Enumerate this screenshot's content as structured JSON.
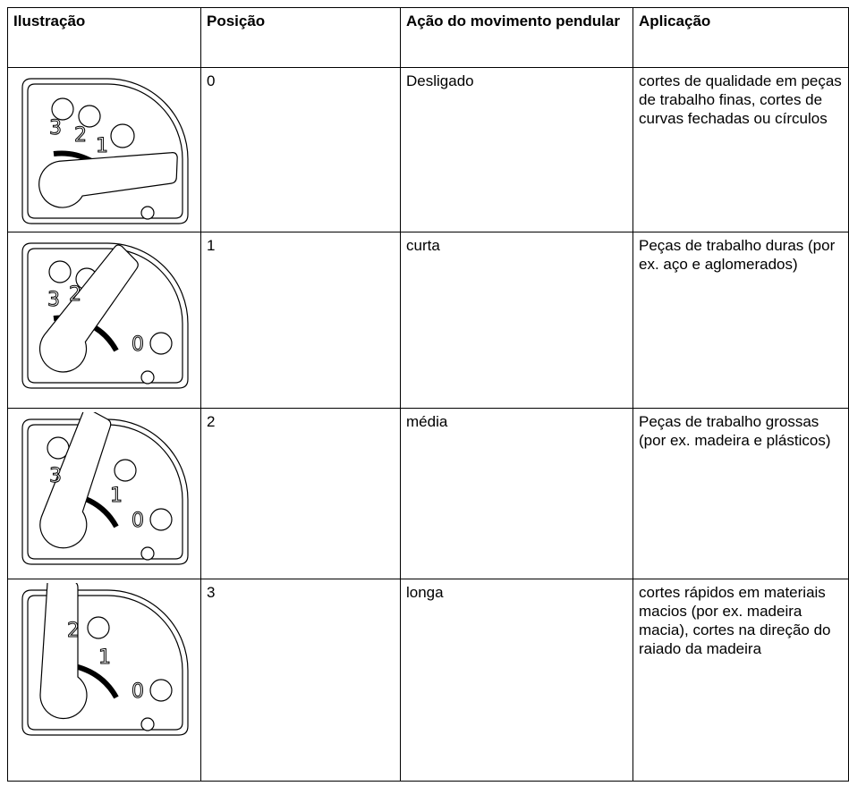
{
  "table": {
    "header": [
      "Ilustração",
      "Posição",
      "Ação do movimento pendular",
      "Aplicação"
    ],
    "rows": [
      {
        "dial_labels": [
          "3",
          "2",
          "1"
        ],
        "position": "0",
        "action": "Desligado",
        "application": "cortes de qualidade em peças de trabalho finas, cortes de curvas fechadas ou círculos"
      },
      {
        "dial_labels": [
          "3",
          "2",
          "0"
        ],
        "position": "1",
        "action": "curta",
        "application": "Peças de trabalho duras (por ex. aço e aglomerados)"
      },
      {
        "dial_labels": [
          "3",
          "1",
          "0"
        ],
        "position": "2",
        "action": "média",
        "application": "Peças de trabalho grossas (por ex. madeira e plásticos)"
      },
      {
        "dial_labels": [
          "2",
          "1",
          "0"
        ],
        "position": "3",
        "action": "longa",
        "application": "cortes rápidos em materiais macios (por ex. madeira macia), cortes na direção do raiado da madeira"
      }
    ]
  }
}
